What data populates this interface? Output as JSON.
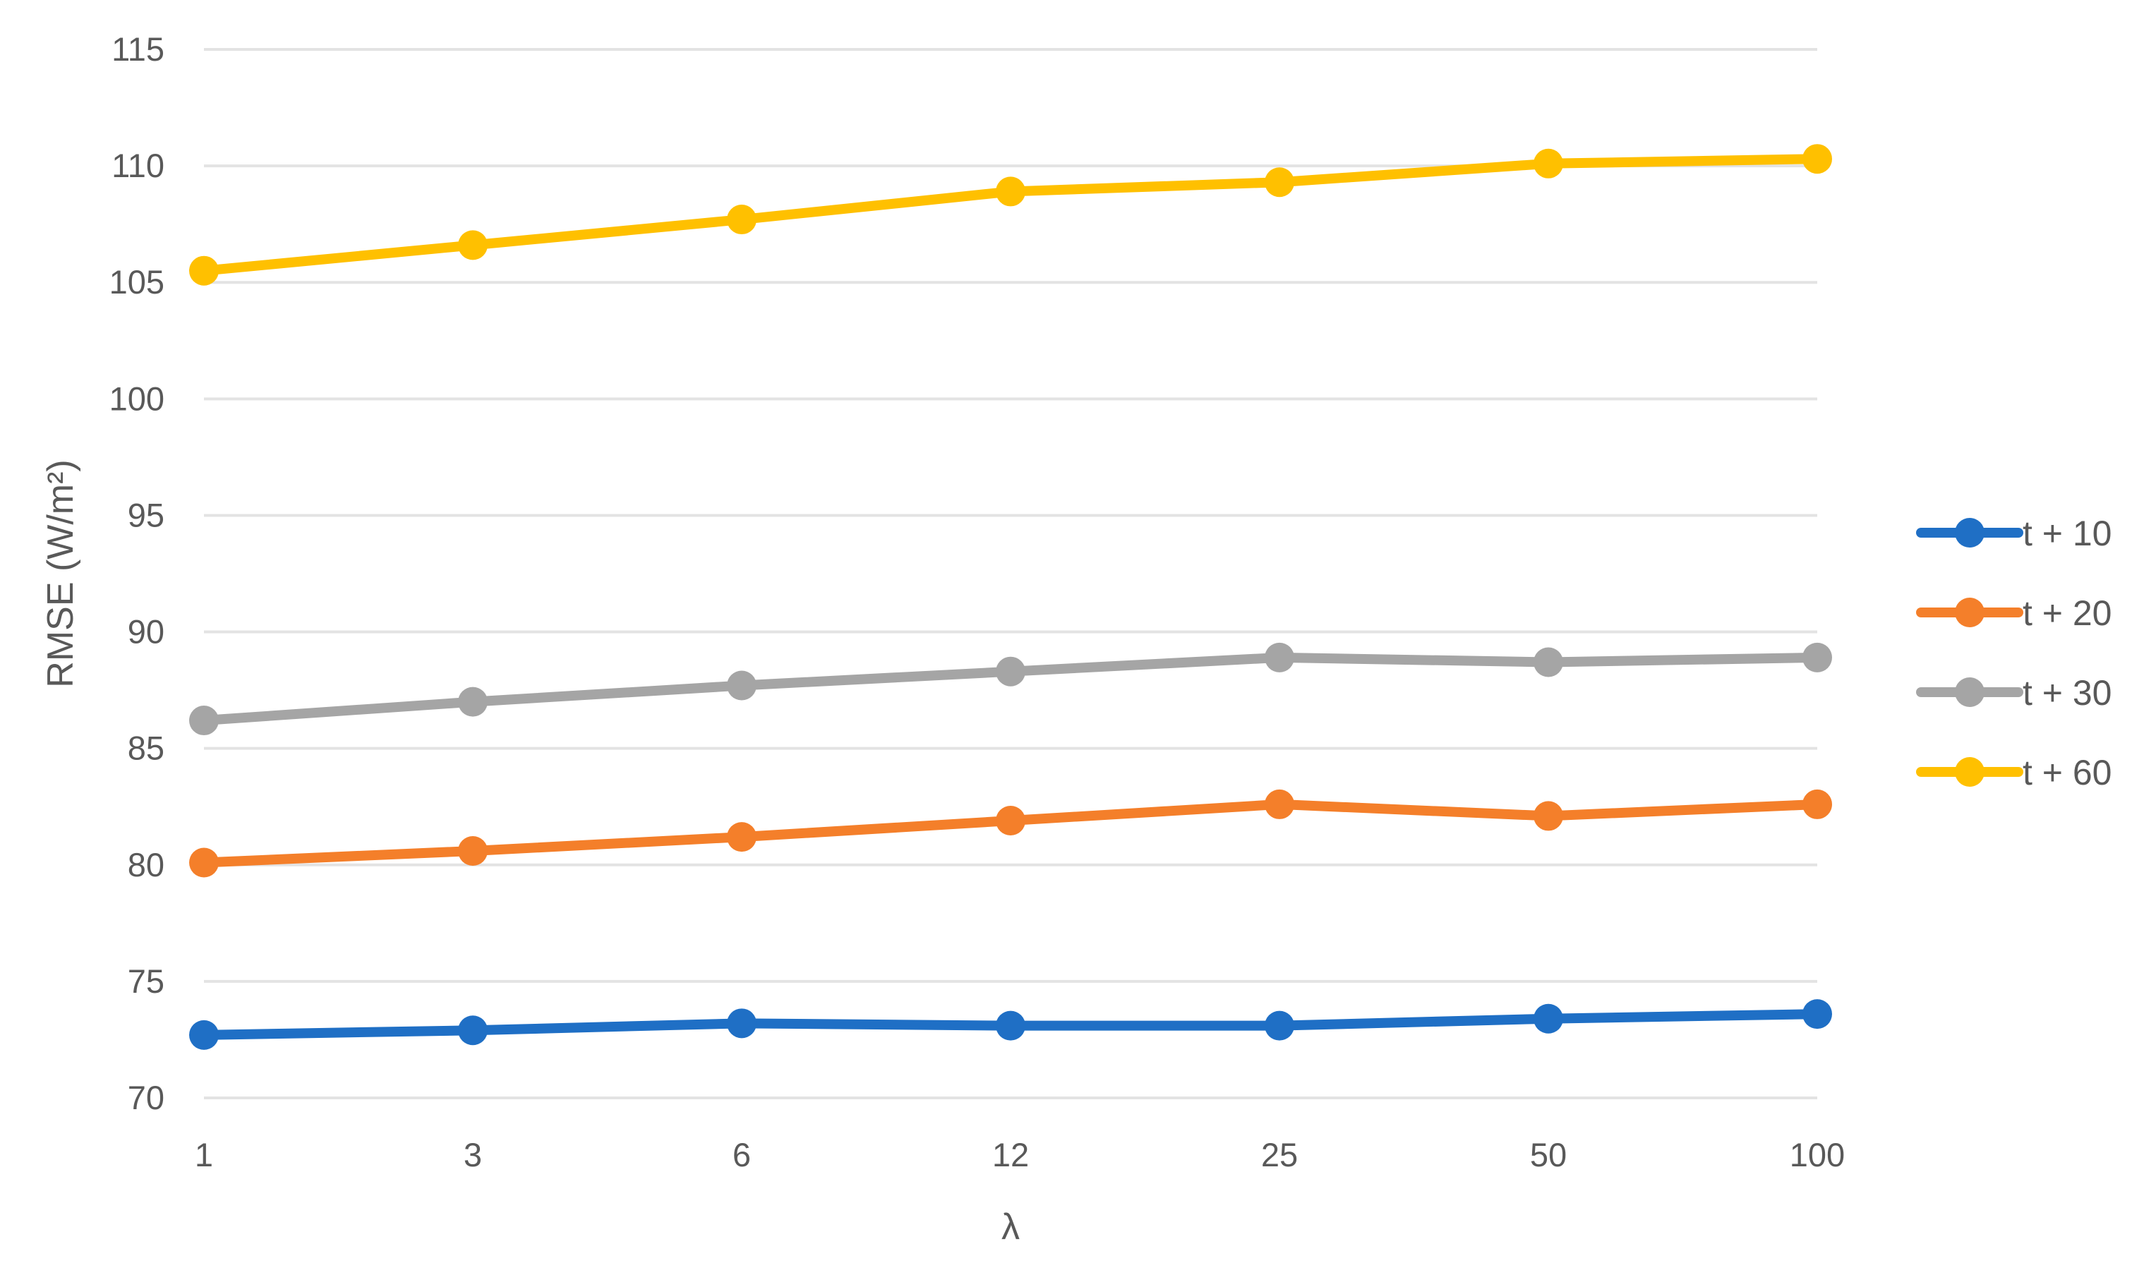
{
  "chart_data": {
    "type": "line",
    "title": "",
    "xlabel": "λ",
    "ylabel": "RMSE (W/m²)",
    "categories": [
      "1",
      "3",
      "6",
      "12",
      "25",
      "50",
      "100"
    ],
    "ylim": [
      70,
      115
    ],
    "yticks": [
      "70",
      "75",
      "80",
      "85",
      "90",
      "95",
      "100",
      "105",
      "110",
      "115"
    ],
    "grid": true,
    "legend_position": "right",
    "series": [
      {
        "name": "t + 10",
        "color": "#1f6fc5",
        "values": [
          72.7,
          72.9,
          73.2,
          73.1,
          73.1,
          73.4,
          73.6
        ]
      },
      {
        "name": "t + 20",
        "color": "#f47f2a",
        "values": [
          80.1,
          80.6,
          81.2,
          81.9,
          82.6,
          82.1,
          82.6
        ]
      },
      {
        "name": "t + 30",
        "color": "#a5a5a5",
        "values": [
          86.2,
          87.0,
          87.7,
          88.3,
          88.9,
          88.7,
          88.9
        ]
      },
      {
        "name": "t + 60",
        "color": "#ffc000",
        "values": [
          105.5,
          106.6,
          107.7,
          108.9,
          109.3,
          110.1,
          110.3
        ]
      }
    ]
  }
}
